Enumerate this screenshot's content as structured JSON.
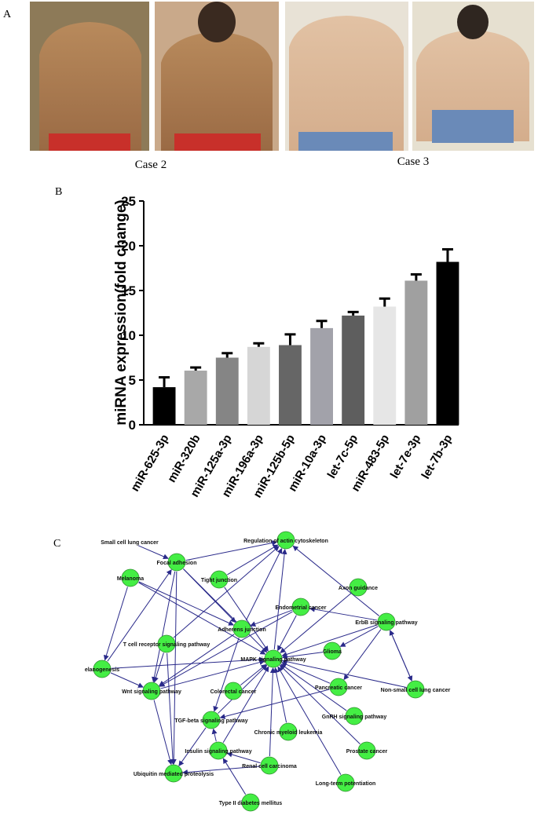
{
  "panel_a": {
    "label": "A",
    "cases": [
      "Case 2",
      "Case 3"
    ]
  },
  "chart_data": {
    "type": "bar",
    "label": "B",
    "ylabel": "miRNA expression(fold change)",
    "categories": [
      "miR-625-3p",
      "miR-320b",
      "miR-125a-3p",
      "miR-196a-3p",
      "miR-125b-5p",
      "miR-10a-3p",
      "let-7c-5p",
      "miR-483-5p",
      "let-7e-3p",
      "let-7b-3p"
    ],
    "values": [
      4.2,
      6.05,
      7.5,
      8.7,
      8.9,
      10.8,
      12.2,
      13.2,
      16.1,
      18.2
    ],
    "errors": [
      1.1,
      0.35,
      0.5,
      0.4,
      1.2,
      0.8,
      0.4,
      0.9,
      0.7,
      1.4
    ],
    "colors": [
      "#000000",
      "#a8a8a8",
      "#858585",
      "#d6d6d6",
      "#666666",
      "#a2a2aa",
      "#5e5e5e",
      "#e6e6e6",
      "#a0a0a0",
      "#000000"
    ],
    "ylim": [
      0,
      25
    ],
    "yticks": [
      0,
      5,
      10,
      15,
      20,
      25
    ]
  },
  "panel_c": {
    "label": "C",
    "nodes": [
      "Regulation of actin cytoskeleton",
      "Small cell lung cancer",
      "Focal adhesion",
      "Tight junction",
      "Axon guidance",
      "Melanoma",
      "Endometrial cancer",
      "ErbB signaling pathway",
      "Adherens junction",
      "T cell receptor signaling pathway",
      "MAPK signaling pathway",
      "Glioma",
      "elanogenesis",
      "Wnt signaling pathway",
      "Colorectal cancer",
      "Pancreatic cancer",
      "Non-small cell lung cancer",
      "TGF-beta signaling pathway",
      "GnRH signaling pathway",
      "Chronic myeloid leukemia",
      "Insulin signaling pathway",
      "Prostate cancer",
      "Renal cell carcinoma",
      "Ubiquitin mediated proteolysis",
      "Long-term potentiation",
      "Type II diabetes mellitus"
    ]
  }
}
